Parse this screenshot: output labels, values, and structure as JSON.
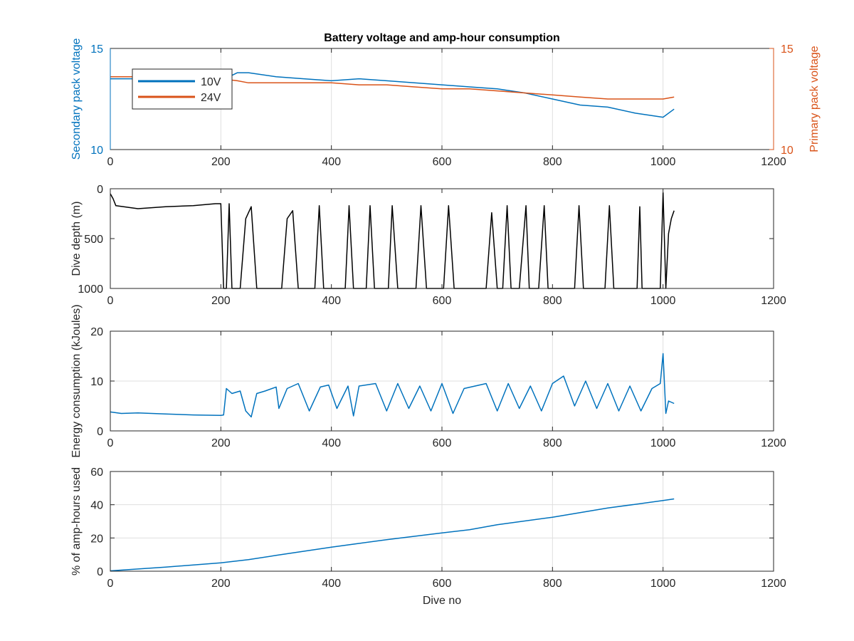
{
  "colors": {
    "blue": "#0072BD",
    "orange": "#D95319",
    "black": "#000000",
    "axis": "#262626",
    "grid": "#dfdfdf"
  },
  "chart_data": [
    {
      "type": "line",
      "title": "Battery voltage and amp-hour consumption",
      "xlabel": "",
      "ylabel": "Secondary pack voltage",
      "ylabel_right": "Primary pack voltage",
      "xlim": [
        0,
        1200
      ],
      "ylim": [
        10,
        15
      ],
      "ylim_right": [
        10,
        15
      ],
      "xticks": [
        "0",
        "200",
        "400",
        "600",
        "800",
        "1000",
        "1200"
      ],
      "yticks": [
        "10",
        "15"
      ],
      "yticks_right": [
        "10",
        "15"
      ],
      "grid": true,
      "legend": "top-left",
      "series": [
        {
          "name": "10V",
          "color": "#0072BD",
          "axis": "left",
          "x": [
            0,
            50,
            100,
            150,
            200,
            230,
            250,
            300,
            350,
            400,
            450,
            500,
            550,
            600,
            650,
            700,
            750,
            800,
            850,
            900,
            950,
            1000,
            1020
          ],
          "y": [
            13.5,
            13.5,
            13.5,
            13.4,
            13.4,
            13.8,
            13.8,
            13.6,
            13.5,
            13.4,
            13.5,
            13.4,
            13.3,
            13.2,
            13.1,
            13.0,
            12.8,
            12.5,
            12.2,
            12.1,
            11.8,
            11.6,
            12.0
          ]
        },
        {
          "name": "24V",
          "color": "#D95319",
          "axis": "right",
          "x": [
            0,
            50,
            100,
            150,
            200,
            230,
            250,
            300,
            350,
            400,
            450,
            500,
            550,
            600,
            650,
            700,
            750,
            800,
            850,
            900,
            950,
            1000,
            1020
          ],
          "y": [
            13.6,
            13.6,
            13.5,
            13.5,
            13.5,
            13.4,
            13.3,
            13.3,
            13.3,
            13.3,
            13.2,
            13.2,
            13.1,
            13.0,
            13.0,
            12.9,
            12.8,
            12.7,
            12.6,
            12.5,
            12.5,
            12.5,
            12.6
          ]
        }
      ]
    },
    {
      "type": "line",
      "xlabel": "",
      "ylabel": "Dive depth (m)",
      "xlim": [
        0,
        1200
      ],
      "ylim": [
        0,
        1000
      ],
      "y_reversed": true,
      "xticks": [
        "0",
        "200",
        "400",
        "600",
        "800",
        "1000",
        "1200"
      ],
      "yticks": [
        "0",
        "500",
        "1000"
      ],
      "grid": false,
      "series": [
        {
          "name": "",
          "color": "#000000",
          "x": [
            0,
            5,
            10,
            50,
            100,
            150,
            190,
            200,
            205,
            210,
            215,
            220,
            225,
            235,
            245,
            255,
            265,
            310,
            320,
            330,
            340,
            370,
            378,
            386,
            395,
            425,
            432,
            440,
            450,
            463,
            470,
            478,
            490,
            503,
            510,
            520,
            530,
            553,
            562,
            572,
            582,
            603,
            612,
            622,
            632,
            680,
            690,
            700,
            710,
            718,
            725,
            732,
            740,
            752,
            758,
            766,
            775,
            785,
            792,
            800,
            810,
            840,
            848,
            856,
            865,
            895,
            903,
            911,
            920,
            953,
            958,
            962,
            970,
            995,
            1000,
            1005,
            1010,
            1015,
            1020
          ],
          "y": [
            50,
            100,
            170,
            200,
            180,
            170,
            150,
            150,
            1000,
            1000,
            150,
            1000,
            1000,
            1000,
            300,
            180,
            1000,
            1000,
            300,
            220,
            1000,
            1000,
            170,
            1000,
            1000,
            1000,
            170,
            1000,
            1000,
            1000,
            170,
            1000,
            1000,
            1000,
            170,
            1000,
            1000,
            1000,
            170,
            1000,
            1000,
            1000,
            170,
            1000,
            1000,
            1000,
            240,
            1000,
            1000,
            170,
            1000,
            1000,
            1000,
            170,
            1000,
            1000,
            1000,
            170,
            1000,
            1000,
            1000,
            1000,
            170,
            1000,
            1000,
            1000,
            170,
            1000,
            1000,
            1000,
            180,
            1000,
            1000,
            1000,
            40,
            1000,
            450,
            300,
            220
          ]
        }
      ]
    },
    {
      "type": "line",
      "xlabel": "",
      "ylabel": "Energy consumption (kJoules)",
      "xlim": [
        0,
        1200
      ],
      "ylim": [
        0,
        20
      ],
      "xticks": [
        "0",
        "200",
        "400",
        "600",
        "800",
        "1000",
        "1200"
      ],
      "yticks": [
        "0",
        "10",
        "20"
      ],
      "grid": true,
      "series": [
        {
          "name": "",
          "color": "#0072BD",
          "x": [
            0,
            20,
            50,
            100,
            150,
            200,
            205,
            210,
            220,
            235,
            245,
            255,
            265,
            280,
            300,
            305,
            320,
            340,
            360,
            380,
            395,
            410,
            430,
            440,
            450,
            480,
            500,
            520,
            540,
            560,
            580,
            600,
            620,
            640,
            660,
            680,
            700,
            720,
            740,
            760,
            780,
            800,
            820,
            840,
            860,
            880,
            900,
            920,
            940,
            960,
            980,
            995,
            1000,
            1005,
            1010,
            1020
          ],
          "y": [
            3.8,
            3.5,
            3.6,
            3.4,
            3.2,
            3.1,
            3.2,
            8.5,
            7.5,
            8.0,
            4.0,
            2.8,
            7.5,
            8.0,
            8.8,
            4.5,
            8.5,
            9.5,
            4.0,
            8.8,
            9.2,
            4.5,
            9.0,
            3.0,
            9.0,
            9.5,
            4.0,
            9.5,
            4.5,
            9.0,
            4.0,
            9.5,
            3.5,
            8.5,
            9.0,
            9.5,
            4.0,
            9.5,
            4.5,
            9.0,
            4.0,
            9.5,
            11.0,
            5.0,
            10.0,
            4.5,
            9.5,
            4.0,
            9.0,
            4.0,
            8.5,
            9.5,
            15.5,
            3.5,
            6.0,
            5.5
          ]
        }
      ]
    },
    {
      "type": "line",
      "xlabel": "Dive no",
      "ylabel": "% of amp-hours used",
      "xlim": [
        0,
        1200
      ],
      "ylim": [
        0,
        60
      ],
      "xticks": [
        "0",
        "200",
        "400",
        "600",
        "800",
        "1000",
        "1200"
      ],
      "yticks": [
        "0",
        "20",
        "40",
        "60"
      ],
      "grid": true,
      "series": [
        {
          "name": "",
          "color": "#0072BD",
          "x": [
            0,
            100,
            200,
            250,
            300,
            400,
            500,
            600,
            650,
            700,
            800,
            900,
            1000,
            1020
          ],
          "y": [
            0.2,
            2.5,
            5.0,
            7.0,
            9.5,
            14.5,
            19.0,
            23.0,
            25.0,
            28.0,
            32.5,
            38.0,
            42.5,
            43.5
          ]
        }
      ]
    }
  ]
}
